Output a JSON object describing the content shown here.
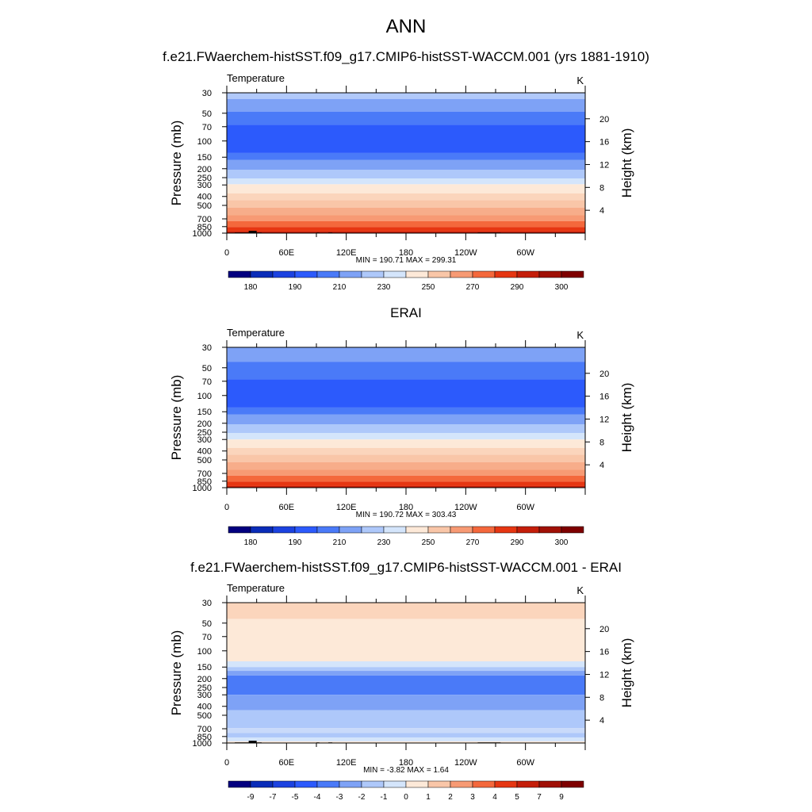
{
  "figure_title": "ANN",
  "chart_data": [
    {
      "type": "heatmap",
      "panel_title": "f.e21.FWaerchem-histSST.f09_g17.CMIP6-histSST-WACCM.001 (yrs 1881-1910)",
      "left_label": "Temperature",
      "units": "K",
      "ylabel": "Pressure (mb)",
      "ylabel_right": "Height (km)",
      "pressure_ticks": [
        30,
        50,
        70,
        100,
        150,
        200,
        250,
        300,
        400,
        500,
        700,
        850,
        1000
      ],
      "height_ticks": [
        4,
        8,
        12,
        16,
        20
      ],
      "x_ticks": [
        "0",
        "60E",
        "120E",
        "180",
        "120W",
        "60W"
      ],
      "min_max_text": "MIN = 190.71  MAX = 299.31",
      "colorbar_colors": [
        "#03007f",
        "#0a2cb8",
        "#1c42e0",
        "#2c5afc",
        "#4a7af8",
        "#7ea2f6",
        "#aec8fa",
        "#d4e5fb",
        "#fde9d8",
        "#f9c6a8",
        "#f79a74",
        "#f4683c",
        "#e63612",
        "#c41e0a",
        "#a01006",
        "#7e0000"
      ],
      "colorbar_labels": [
        "180",
        "190",
        "210",
        "230",
        "250",
        "270",
        "290",
        "300"
      ],
      "field_bands": [
        {
          "p_top": 30,
          "color": "#b1c9fa"
        },
        {
          "p_top": 35,
          "color": "#7ea2f6"
        },
        {
          "p_top": 48,
          "color": "#4a7af8"
        },
        {
          "p_top": 67,
          "color": "#2c5afc"
        },
        {
          "p_top": 135,
          "color": "#4a7af8"
        },
        {
          "p_top": 160,
          "color": "#7ea2f6"
        },
        {
          "p_top": 205,
          "color": "#aec8fa"
        },
        {
          "p_top": 255,
          "color": "#d4e5fb"
        },
        {
          "p_top": 295,
          "color": "#fde9d8"
        },
        {
          "p_top": 370,
          "color": "#fbd5bc"
        },
        {
          "p_top": 440,
          "color": "#f9c6a8"
        },
        {
          "p_top": 530,
          "color": "#f7ad8a"
        },
        {
          "p_top": 640,
          "color": "#f79a74"
        },
        {
          "p_top": 740,
          "color": "#f4683c"
        },
        {
          "p_top": 860,
          "color": "#e63612"
        },
        {
          "p_top": 960,
          "color": "#c41e0a"
        }
      ],
      "terrain_blocks": [
        [
          8,
          22,
          985
        ],
        [
          22,
          30,
          945
        ],
        [
          30,
          35,
          985
        ],
        [
          90,
          93,
          985
        ],
        [
          102,
          106,
          985
        ],
        [
          252,
          275,
          985
        ]
      ]
    },
    {
      "type": "heatmap",
      "panel_title": "ERAI",
      "left_label": "Temperature",
      "units": "K",
      "ylabel": "Pressure (mb)",
      "ylabel_right": "Height (km)",
      "pressure_ticks": [
        30,
        50,
        70,
        100,
        150,
        200,
        250,
        300,
        400,
        500,
        700,
        850,
        1000
      ],
      "height_ticks": [
        4,
        8,
        12,
        16,
        20
      ],
      "x_ticks": [
        "0",
        "60E",
        "120E",
        "180",
        "120W",
        "60W"
      ],
      "min_max_text": "MIN = 190.72  MAX = 303.43",
      "colorbar_colors": [
        "#03007f",
        "#0a2cb8",
        "#1c42e0",
        "#2c5afc",
        "#4a7af8",
        "#7ea2f6",
        "#aec8fa",
        "#d4e5fb",
        "#fde9d8",
        "#f9c6a8",
        "#f79a74",
        "#f4683c",
        "#e63612",
        "#c41e0a",
        "#a01006",
        "#7e0000"
      ],
      "colorbar_labels": [
        "180",
        "190",
        "210",
        "230",
        "250",
        "270",
        "290",
        "300"
      ],
      "field_bands": [
        {
          "p_top": 30,
          "color": "#7ea2f6"
        },
        {
          "p_top": 43,
          "color": "#4a7af8"
        },
        {
          "p_top": 67,
          "color": "#2c5afc"
        },
        {
          "p_top": 135,
          "color": "#4a7af8"
        },
        {
          "p_top": 160,
          "color": "#7ea2f6"
        },
        {
          "p_top": 205,
          "color": "#aec8fa"
        },
        {
          "p_top": 255,
          "color": "#d4e5fb"
        },
        {
          "p_top": 300,
          "color": "#fde9d8"
        },
        {
          "p_top": 370,
          "color": "#fbd5bc"
        },
        {
          "p_top": 440,
          "color": "#f9c6a8"
        },
        {
          "p_top": 530,
          "color": "#f7ad8a"
        },
        {
          "p_top": 640,
          "color": "#f79a74"
        },
        {
          "p_top": 740,
          "color": "#f4683c"
        },
        {
          "p_top": 860,
          "color": "#e63612"
        },
        {
          "p_top": 960,
          "color": "#c41e0a"
        }
      ],
      "terrain_blocks": []
    },
    {
      "type": "heatmap",
      "panel_title": "f.e21.FWaerchem-histSST.f09_g17.CMIP6-histSST-WACCM.001 - ERAI",
      "left_label": "Temperature",
      "units": "K",
      "ylabel": "Pressure (mb)",
      "ylabel_right": "Height (km)",
      "pressure_ticks": [
        30,
        50,
        70,
        100,
        150,
        200,
        250,
        300,
        400,
        500,
        700,
        850,
        1000
      ],
      "height_ticks": [
        4,
        8,
        12,
        16,
        20
      ],
      "x_ticks": [
        "0",
        "60E",
        "120E",
        "180",
        "120W",
        "60W"
      ],
      "min_max_text": "MIN =  -3.82  MAX =   1.64",
      "colorbar_colors": [
        "#03007f",
        "#0a2cb8",
        "#1c42e0",
        "#2c5afc",
        "#4a7af8",
        "#7ea2f6",
        "#aec8fa",
        "#d4e5fb",
        "#fde9d8",
        "#f9c6a8",
        "#f79a74",
        "#f4683c",
        "#e63612",
        "#c41e0a",
        "#a01006",
        "#7e0000"
      ],
      "colorbar_labels": [
        "-9",
        "-7",
        "-5",
        "-4",
        "-3",
        "-2",
        "-1",
        "0",
        "1",
        "2",
        "3",
        "4",
        "5",
        "7",
        "9"
      ],
      "field_bands": [
        {
          "p_top": 30,
          "color": "#fbd5bc"
        },
        {
          "p_top": 45,
          "color": "#fde9d8"
        },
        {
          "p_top": 130,
          "color": "#d4e5fb"
        },
        {
          "p_top": 150,
          "color": "#aec8fa"
        },
        {
          "p_top": 165,
          "color": "#7ea2f6"
        },
        {
          "p_top": 185,
          "color": "#4a7af8"
        },
        {
          "p_top": 300,
          "color": "#7ea2f6"
        },
        {
          "p_top": 440,
          "color": "#aec8fa"
        },
        {
          "p_top": 690,
          "color": "#c9dafa"
        },
        {
          "p_top": 780,
          "color": "#aec8fa"
        },
        {
          "p_top": 870,
          "color": "#d4e5fb"
        },
        {
          "p_top": 960,
          "color": "#fde9d8"
        }
      ],
      "terrain_blocks": [
        [
          8,
          22,
          985
        ],
        [
          22,
          30,
          945
        ],
        [
          30,
          35,
          985
        ],
        [
          90,
          93,
          985
        ],
        [
          102,
          106,
          985
        ],
        [
          252,
          275,
          985
        ]
      ]
    }
  ]
}
